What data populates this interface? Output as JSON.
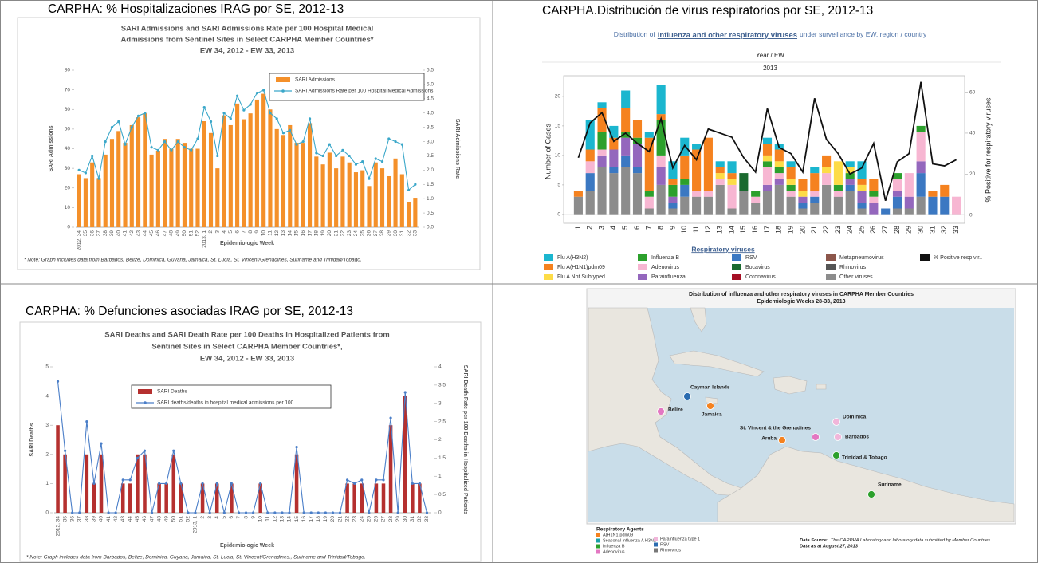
{
  "chart_data": [
    {
      "type": "combo",
      "heading": "CARPHA:  % Hospitalizaciones IRAG por SE, 2012-13",
      "title": [
        "SARI Admissions and SARI Admissions Rate per 100 Hospital Medical",
        "Admissions from Sentinel Sites in Select CARPHA Member Countries*",
        "EW 34, 2012 - EW 33, 2013"
      ],
      "x_label": "Epidemiologic Week",
      "y_label": "SARI Admissions",
      "y2_label": "SARI Admissions Rate",
      "note": "* Note: Graph includes data from Barbados, Belize, Dominica, Guyana, Jamaica,  St. Lucia,  St. Vincent/Grenadines, Suriname and Trinidad/Tobago.",
      "categories": [
        "2012, 34",
        "35",
        "36",
        "37",
        "38",
        "39",
        "40",
        "41",
        "42",
        "43",
        "44",
        "45",
        "46",
        "47",
        "48",
        "49",
        "50",
        "51",
        "52",
        "2013, 1",
        "2",
        "3",
        "4",
        "5",
        "6",
        "7",
        "8",
        "9",
        "10",
        "11",
        "12",
        "13",
        "14",
        "15",
        "16",
        "17",
        "18",
        "19",
        "20",
        "21",
        "22",
        "23",
        "24",
        "25",
        "26",
        "27",
        "28",
        "29",
        "30",
        "31",
        "32",
        "33"
      ],
      "series": [
        {
          "name": "SARI Admissions",
          "type": "bar",
          "color": "#f4902a",
          "values": [
            27,
            25,
            33,
            25,
            37,
            45,
            49,
            43,
            52,
            56,
            58,
            37,
            39,
            45,
            40,
            45,
            43,
            40,
            40,
            54,
            48,
            30,
            57,
            52,
            63,
            55,
            58,
            65,
            68,
            60,
            50,
            47,
            52,
            43,
            43,
            53,
            36,
            32,
            38,
            30,
            36,
            33,
            28,
            29,
            21,
            33,
            30,
            26,
            35,
            27,
            13,
            15
          ]
        },
        {
          "name": "SARI Admissions Rate per 100 Hospital Medical Admissions",
          "type": "line",
          "axis": "y2",
          "color": "#3aa7c9",
          "values": [
            2.0,
            1.9,
            2.5,
            1.7,
            3.0,
            3.5,
            3.7,
            2.9,
            3.5,
            3.9,
            4.0,
            2.8,
            2.7,
            3.0,
            2.7,
            3.0,
            2.8,
            2.7,
            3.1,
            4.2,
            3.7,
            2.5,
            4.0,
            3.8,
            4.6,
            4.1,
            4.3,
            4.7,
            4.8,
            4.0,
            3.8,
            3.3,
            3.4,
            2.9,
            3.0,
            3.8,
            2.6,
            2.5,
            2.9,
            2.5,
            2.7,
            2.5,
            2.2,
            2.3,
            1.7,
            2.4,
            2.3,
            3.1,
            3.0,
            2.9,
            1.3,
            1.5
          ]
        }
      ],
      "ylim": [
        0,
        80
      ],
      "yticks": [
        0,
        10,
        20,
        30,
        40,
        50,
        60,
        70,
        80
      ],
      "y2lim": [
        0,
        5.5
      ],
      "y2ticks": [
        {
          "value": 0,
          "label": "0.0"
        },
        0.5,
        {
          "value": 1,
          "label": "1.0"
        },
        1.5,
        {
          "value": 2,
          "label": "2.0"
        },
        2.5,
        {
          "value": 3,
          "label": "3.0"
        },
        3.5,
        {
          "value": 4,
          "label": "4.0"
        },
        4.5,
        {
          "value": 5,
          "label": "5.0"
        },
        5.5
      ]
    },
    {
      "type": "stacked_bar",
      "heading": "CARPHA.Distribución de virus respiratorios por SE, 2012-13",
      "subtitle": [
        "Distribution of",
        "influenza and other respiratory viruses",
        "under surveillance by EW, region / country"
      ],
      "filter_label": "Year  /  EW",
      "filter_value": "2013",
      "y_label": "Number of Cases",
      "y2_label": "% Positive for respiratory viruses",
      "legend_title": "Respiratory viruses",
      "categories": [
        "1",
        "2",
        "3",
        "4",
        "5",
        "6",
        "7",
        "8",
        "9",
        "10",
        "11",
        "12",
        "13",
        "14",
        "15",
        "16",
        "17",
        "18",
        "19",
        "20",
        "21",
        "22",
        "23",
        "24",
        "25",
        "26",
        "27",
        "28",
        "29",
        "30",
        "31",
        "32",
        "33"
      ],
      "series": [
        {
          "name": "Flu A(H3N2)",
          "type": "bar",
          "color": "#1bb6cf",
          "values": [
            0,
            5,
            1,
            2,
            3,
            0,
            1,
            5,
            3,
            3,
            1,
            0,
            1,
            2,
            0,
            0,
            1,
            1,
            1,
            0,
            1,
            0,
            0,
            1,
            3,
            0,
            0,
            0,
            0,
            0,
            0,
            0,
            0
          ]
        },
        {
          "name": "Flu A(H1N1)pdm09",
          "type": "bar",
          "color": "#f5821f",
          "values": [
            1,
            2,
            4,
            2,
            4,
            3,
            9,
            1,
            1,
            4,
            7,
            9,
            1,
            1,
            0,
            0,
            2,
            2,
            2,
            2,
            3,
            2,
            0,
            0,
            1,
            2,
            0,
            0,
            0,
            0,
            1,
            2,
            0
          ]
        },
        {
          "name": "Flu A Not Subtyped",
          "type": "bar",
          "color": "#fddc47",
          "values": [
            0,
            0,
            0,
            0,
            0,
            0,
            0,
            0,
            0,
            0,
            0,
            0,
            1,
            1,
            0,
            0,
            1,
            1,
            1,
            1,
            0,
            1,
            4,
            1,
            1,
            0,
            0,
            0,
            0,
            0,
            0,
            0,
            0
          ]
        },
        {
          "name": "Influenza B",
          "type": "bar",
          "color": "#2ca02c",
          "values": [
            0,
            0,
            3,
            0,
            1,
            1,
            1,
            6,
            2,
            1,
            0,
            0,
            0,
            0,
            0,
            1,
            1,
            1,
            1,
            0,
            0,
            0,
            1,
            1,
            0,
            1,
            0,
            1,
            0,
            1,
            0,
            0,
            0
          ]
        },
        {
          "name": "Adenovirus",
          "type": "bar",
          "color": "#f7b6d2",
          "values": [
            0,
            2,
            1,
            0,
            0,
            0,
            2,
            2,
            0,
            0,
            1,
            1,
            1,
            4,
            0,
            1,
            3,
            1,
            1,
            0,
            1,
            2,
            1,
            0,
            0,
            1,
            0,
            2,
            4,
            5,
            0,
            0,
            3
          ]
        },
        {
          "name": "Parainfluenza",
          "type": "bar",
          "color": "#9467bd",
          "values": [
            0,
            0,
            2,
            3,
            3,
            4,
            0,
            3,
            1,
            0,
            0,
            0,
            0,
            0,
            0,
            0,
            1,
            1,
            0,
            1,
            0,
            0,
            0,
            1,
            2,
            2,
            0,
            1,
            2,
            2,
            0,
            0,
            0
          ]
        },
        {
          "name": "RSV",
          "type": "bar",
          "color": "#3b78c2",
          "values": [
            0,
            3,
            0,
            1,
            2,
            1,
            0,
            0,
            1,
            2,
            0,
            0,
            0,
            0,
            0,
            0,
            0,
            0,
            0,
            1,
            1,
            0,
            0,
            1,
            1,
            0,
            1,
            2,
            0,
            4,
            3,
            3,
            0
          ]
        },
        {
          "name": "Bocavirus",
          "type": "bar",
          "color": "#1a6a2f",
          "values": [
            0,
            0,
            0,
            0,
            0,
            0,
            0,
            0,
            0,
            0,
            0,
            0,
            0,
            0,
            3,
            0,
            0,
            0,
            0,
            0,
            0,
            0,
            0,
            0,
            0,
            0,
            0,
            0,
            0,
            0,
            0,
            0,
            0
          ]
        },
        {
          "name": "Coronavirus",
          "type": "bar",
          "color": "#a50f24",
          "values": [
            0,
            0,
            0,
            0,
            0,
            0,
            0,
            0,
            0,
            0,
            0,
            0,
            0,
            0,
            0,
            0,
            0,
            0,
            0,
            0,
            0,
            0,
            0,
            0,
            0,
            0,
            0,
            0,
            0,
            0,
            0,
            0,
            0
          ]
        },
        {
          "name": "Metapneumovirus",
          "type": "bar",
          "color": "#8c564b",
          "values": [
            0,
            0,
            0,
            0,
            0,
            0,
            0,
            0,
            0,
            0,
            0,
            0,
            0,
            0,
            0,
            0,
            0,
            0,
            0,
            0,
            0,
            0,
            0,
            0,
            0,
            0,
            0,
            0,
            0,
            0,
            0,
            0,
            0
          ]
        },
        {
          "name": "Rhinovirus",
          "type": "bar",
          "color": "#555555",
          "values": [
            0,
            0,
            0,
            0,
            0,
            0,
            0,
            0,
            0,
            0,
            0,
            0,
            0,
            0,
            0,
            0,
            0,
            0,
            0,
            0,
            0,
            0,
            0,
            0,
            0,
            0,
            0,
            0,
            0,
            0,
            0,
            0,
            0
          ]
        },
        {
          "name": "Other viruses",
          "type": "bar",
          "color": "#8c8c8c",
          "values": [
            3,
            4,
            8,
            7,
            8,
            7,
            1,
            5,
            1,
            3,
            3,
            3,
            5,
            1,
            4,
            2,
            4,
            5,
            3,
            1,
            2,
            5,
            3,
            4,
            1,
            0,
            0,
            1,
            1,
            3,
            0,
            0,
            0
          ]
        },
        {
          "name": "% Positive resp vir..",
          "type": "line",
          "axis": "y2",
          "color": "#111111",
          "values": [
            28,
            45,
            50,
            36,
            40,
            35,
            31,
            47,
            23,
            34,
            27,
            42,
            40,
            38,
            28,
            21,
            52,
            33,
            30,
            21,
            57,
            37,
            30,
            20,
            23,
            35,
            7,
            26,
            30,
            65,
            25,
            24,
            27
          ]
        }
      ],
      "ylim": [
        -1.5,
        23.5
      ],
      "yticks": [
        0,
        5,
        10,
        15,
        20
      ],
      "y2lim": [
        -4,
        68
      ],
      "y2ticks": [
        0,
        20,
        40,
        60
      ]
    },
    {
      "type": "combo",
      "heading": "CARPHA:  % Defunciones asociadas IRAG por SE, 2012-13",
      "title": [
        "SARI Deaths and SARI Death Rate per 100 Deaths in Hospitalized Patients from",
        "Sentinel Sites in Select CARPHA Member Countries*,",
        "EW 34, 2012 - EW 33, 2013"
      ],
      "x_label": "Epidemiologic Week",
      "y_label": "SARI Deaths",
      "y2_label": "SARI Death Rate per 100 Deaths in Hospitalized Patients",
      "note": "* Note: Graph includes data from Barbados, Belize, Dominica, Guyana, Jamaica, St. Lucia, St. Vincent/Grenadines., Suriname and Trinidad/Tobago.",
      "categories": [
        "2012, 34",
        "35",
        "36",
        "37",
        "38",
        "39",
        "40",
        "41",
        "42",
        "43",
        "44",
        "45",
        "46",
        "47",
        "48",
        "49",
        "50",
        "51",
        "52",
        "2013, 1",
        "2",
        "3",
        "4",
        "5",
        "6",
        "7",
        "8",
        "9",
        "10",
        "11",
        "12",
        "13",
        "14",
        "15",
        "16",
        "17",
        "18",
        "19",
        "20",
        "21",
        "22",
        "23",
        "24",
        "25",
        "26",
        "27",
        "28",
        "29",
        "30",
        "31",
        "32",
        "33"
      ],
      "series": [
        {
          "name": "SARI Deaths",
          "type": "bar",
          "color": "#b5302f",
          "values": [
            3,
            2,
            0,
            0,
            2,
            1,
            2,
            0,
            0,
            1,
            1,
            2,
            2,
            0,
            1,
            1,
            2,
            1,
            0,
            0,
            1,
            0,
            1,
            0,
            1,
            0,
            0,
            0,
            1,
            0,
            0,
            0,
            0,
            2,
            0,
            0,
            0,
            0,
            0,
            0,
            1,
            1,
            1,
            0,
            1,
            1,
            3,
            0,
            4,
            1,
            1,
            0
          ]
        },
        {
          "name": "SARI deaths/deaths in hospital medical admissions per 100",
          "type": "line",
          "axis": "y2",
          "color": "#4a7ec8",
          "values": [
            3.6,
            1.7,
            0,
            0,
            2.5,
            0.8,
            1.9,
            0,
            0,
            0.9,
            0.9,
            1.5,
            1.7,
            0,
            0.8,
            0.8,
            1.7,
            0.8,
            0,
            0,
            0.8,
            0,
            0.8,
            0,
            0.8,
            0,
            0,
            0,
            0.8,
            0,
            0,
            0,
            0,
            1.8,
            0,
            0,
            0,
            0,
            0,
            0,
            0.9,
            0.8,
            0.9,
            0,
            0.9,
            0.9,
            2.6,
            0,
            3.3,
            0.8,
            0.8,
            0
          ]
        }
      ],
      "ylim": [
        0,
        5
      ],
      "yticks": [
        0,
        1,
        2,
        3,
        4,
        5
      ],
      "y2lim": [
        0,
        4
      ],
      "y2ticks": [
        0,
        0.5,
        1,
        1.5,
        2,
        2.5,
        3,
        3.5,
        4
      ]
    }
  ],
  "map": {
    "title": "Distribution of influenza and other respiratory viruses in CARPHA Member Countries",
    "subtitle": "Epidemiologic Weeks 28-33, 2013",
    "places": [
      {
        "label": "Cayman Islands",
        "color": "#2b6cb0"
      },
      {
        "label": "Belize",
        "color": "#e377c2"
      },
      {
        "label": "Jamaica",
        "color": "#f5821f"
      },
      {
        "label": "Dominica",
        "color": "#f1b6da"
      },
      {
        "label": "Aruba",
        "color": "#f5821f"
      },
      {
        "label": "St. Vincent & the Grenadines",
        "color": "#e377c2"
      },
      {
        "label": "Barbados",
        "color": "#f1b6da"
      },
      {
        "label": "Trinidad & Tobago",
        "color": "#2ca02c"
      },
      {
        "label": "Suriname",
        "color": "#2ca02c"
      }
    ],
    "legend_title": "Respiratory Agents",
    "agents": [
      {
        "name": "A(H1N1)pdm09",
        "color": "#f5821f"
      },
      {
        "name": "Seasonal Influenza A H3N2",
        "color": "#1aa1a8"
      },
      {
        "name": "Influenza B",
        "color": "#2ca02c"
      },
      {
        "name": "Adenovirus",
        "color": "#e377c2"
      },
      {
        "name": "Parainfluenza type 1",
        "color": "#f1b6da"
      },
      {
        "name": "RSV",
        "color": "#2b6cb0"
      },
      {
        "name": "Rhinovirus",
        "color": "#777777"
      }
    ],
    "source_label": "Data Source:",
    "source": "The CARPHA Laboratory and laboratory data submitted by Member Countries",
    "date": "Data as at August 27, 2013"
  }
}
